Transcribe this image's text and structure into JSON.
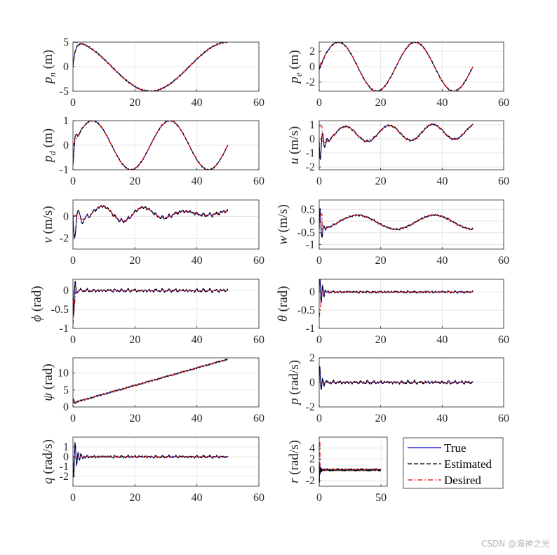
{
  "watermark": "CSDN @海神之光",
  "chart_data": {
    "type": "line",
    "legend": {
      "placement": "bottom-right",
      "entries": [
        {
          "name": "True",
          "color": "#0000cc",
          "style": "solid"
        },
        {
          "name": "Estimated",
          "color": "#000000",
          "style": "dashed"
        },
        {
          "name": "Desired",
          "color": "#ee0000",
          "style": "dashdot"
        }
      ]
    },
    "grid": true,
    "subplots": [
      {
        "id": "pn",
        "ylabel_sym": "p",
        "ylabel_sub": "n",
        "ylabel_unit": "(m)",
        "xlim": [
          0,
          60
        ],
        "xticks": [
          0,
          20,
          40,
          60
        ],
        "ylim": [
          -5,
          5
        ],
        "yticks": [
          -5,
          0,
          5
        ],
        "signal": "pn"
      },
      {
        "id": "pe",
        "ylabel_sym": "p",
        "ylabel_sub": "e",
        "ylabel_unit": "(m)",
        "xlim": [
          0,
          60
        ],
        "xticks": [
          0,
          20,
          40,
          60
        ],
        "ylim": [
          -3.2,
          3.2
        ],
        "yticks": [
          -2,
          0,
          2
        ],
        "signal": "pe"
      },
      {
        "id": "pd",
        "ylabel_sym": "p",
        "ylabel_sub": "d",
        "ylabel_unit": "(m)",
        "xlim": [
          0,
          60
        ],
        "xticks": [
          0,
          20,
          40,
          60
        ],
        "ylim": [
          -1,
          1
        ],
        "yticks": [
          -1,
          0,
          1
        ],
        "signal": "pd"
      },
      {
        "id": "u",
        "ylabel_sym": "u",
        "ylabel_sub": "",
        "ylabel_unit": "(m/s)",
        "xlim": [
          0,
          60
        ],
        "xticks": [
          0,
          20,
          40,
          60
        ],
        "ylim": [
          -2.2,
          1.3
        ],
        "yticks": [
          -2,
          -1,
          0,
          1
        ],
        "signal": "u"
      },
      {
        "id": "v",
        "ylabel_sym": "v",
        "ylabel_sub": "",
        "ylabel_unit": "(m/s)",
        "xlim": [
          0,
          60
        ],
        "xticks": [
          0,
          20,
          40,
          60
        ],
        "ylim": [
          -3,
          1.5
        ],
        "yticks": [
          -2,
          0
        ],
        "signal": "v"
      },
      {
        "id": "w",
        "ylabel_sym": "w",
        "ylabel_sub": "",
        "ylabel_unit": "(m/s)",
        "xlim": [
          0,
          60
        ],
        "xticks": [
          0,
          20,
          40,
          60
        ],
        "ylim": [
          -1.2,
          0.9
        ],
        "yticks": [
          -1,
          -0.5,
          0,
          0.5
        ],
        "signal": "w"
      },
      {
        "id": "phi",
        "ylabel_sym": "ϕ",
        "ylabel_sub": "",
        "ylabel_unit": "(rad)",
        "xlim": [
          0,
          60
        ],
        "xticks": [
          0,
          20,
          40,
          60
        ],
        "ylim": [
          -1,
          0.3
        ],
        "yticks": [
          -1,
          -0.5,
          0
        ],
        "signal": "phi"
      },
      {
        "id": "theta",
        "ylabel_sym": "θ",
        "ylabel_sub": "",
        "ylabel_unit": "(rad)",
        "xlim": [
          0,
          60
        ],
        "xticks": [
          0,
          20,
          40,
          60
        ],
        "ylim": [
          -1,
          0.35
        ],
        "yticks": [
          -1,
          -0.5,
          0
        ],
        "signal": "theta"
      },
      {
        "id": "psi",
        "ylabel_sym": "ψ",
        "ylabel_sub": "",
        "ylabel_unit": "(rad)",
        "xlim": [
          0,
          60
        ],
        "xticks": [
          0,
          20,
          40,
          60
        ],
        "ylim": [
          0,
          14.5
        ],
        "yticks": [
          0,
          5,
          10
        ],
        "signal": "psi"
      },
      {
        "id": "p",
        "ylabel_sym": "p",
        "ylabel_sub": "",
        "ylabel_unit": "(rad/s)",
        "xlim": [
          0,
          60
        ],
        "xticks": [
          0,
          20,
          40,
          60
        ],
        "ylim": [
          -2,
          2
        ],
        "yticks": [
          -2,
          0,
          2
        ],
        "signal": "p"
      },
      {
        "id": "q",
        "ylabel_sym": "q",
        "ylabel_sub": "",
        "ylabel_unit": "(rad/s)",
        "xlim": [
          0,
          60
        ],
        "xticks": [
          0,
          20,
          40,
          60
        ],
        "ylim": [
          -3,
          2
        ],
        "yticks": [
          -2,
          -1,
          0,
          1
        ],
        "signal": "q"
      },
      {
        "id": "r",
        "ylabel_sym": "r",
        "ylabel_sub": "",
        "ylabel_unit": "(rad/s)",
        "xlim": [
          0,
          55
        ],
        "xticks": [
          0,
          50
        ],
        "ylim": [
          -3,
          6
        ],
        "yticks": [
          -2,
          0,
          2,
          4
        ],
        "signal": "r"
      }
    ]
  }
}
